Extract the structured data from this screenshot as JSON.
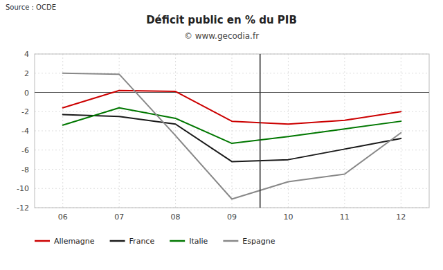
{
  "chart_data": {
    "type": "line",
    "title": "Déficit public en % du PIB",
    "subtitle": "© www.gecodia.fr",
    "annotations": [
      "Source : OCDE"
    ],
    "x": [
      6,
      7,
      8,
      9,
      10,
      11,
      12
    ],
    "xlim": [
      5.5,
      12.5
    ],
    "xticks": [
      {
        "value": 6,
        "label": "06"
      },
      {
        "value": 7,
        "label": "07"
      },
      {
        "value": 8,
        "label": "08"
      },
      {
        "value": 9,
        "label": "09"
      },
      10,
      11,
      12
    ],
    "ylim": [
      -12,
      4
    ],
    "yticks": [
      -12,
      -10,
      -8,
      -6,
      -4,
      -2,
      0,
      2,
      4
    ],
    "vlines": [
      9.5
    ],
    "hlines": [
      0
    ],
    "grid": true,
    "legend": "bottom",
    "series": [
      {
        "name": "Allemagne",
        "color": "#cc0000",
        "values": [
          -1.6,
          0.2,
          0.1,
          -3.0,
          -3.3,
          -2.9,
          -2.0
        ]
      },
      {
        "name": "France",
        "color": "#1a1a1a",
        "values": [
          -2.3,
          -2.5,
          -3.3,
          -7.2,
          -7.0,
          -5.9,
          -4.8
        ]
      },
      {
        "name": "Italie",
        "color": "#007700",
        "values": [
          -3.4,
          -1.6,
          -2.7,
          -5.3,
          -4.6,
          -3.8,
          -3.0
        ]
      },
      {
        "name": "Espagne",
        "color": "#888888",
        "values": [
          2.0,
          1.9,
          -4.5,
          -11.1,
          -9.3,
          -8.5,
          -4.2
        ]
      }
    ]
  }
}
